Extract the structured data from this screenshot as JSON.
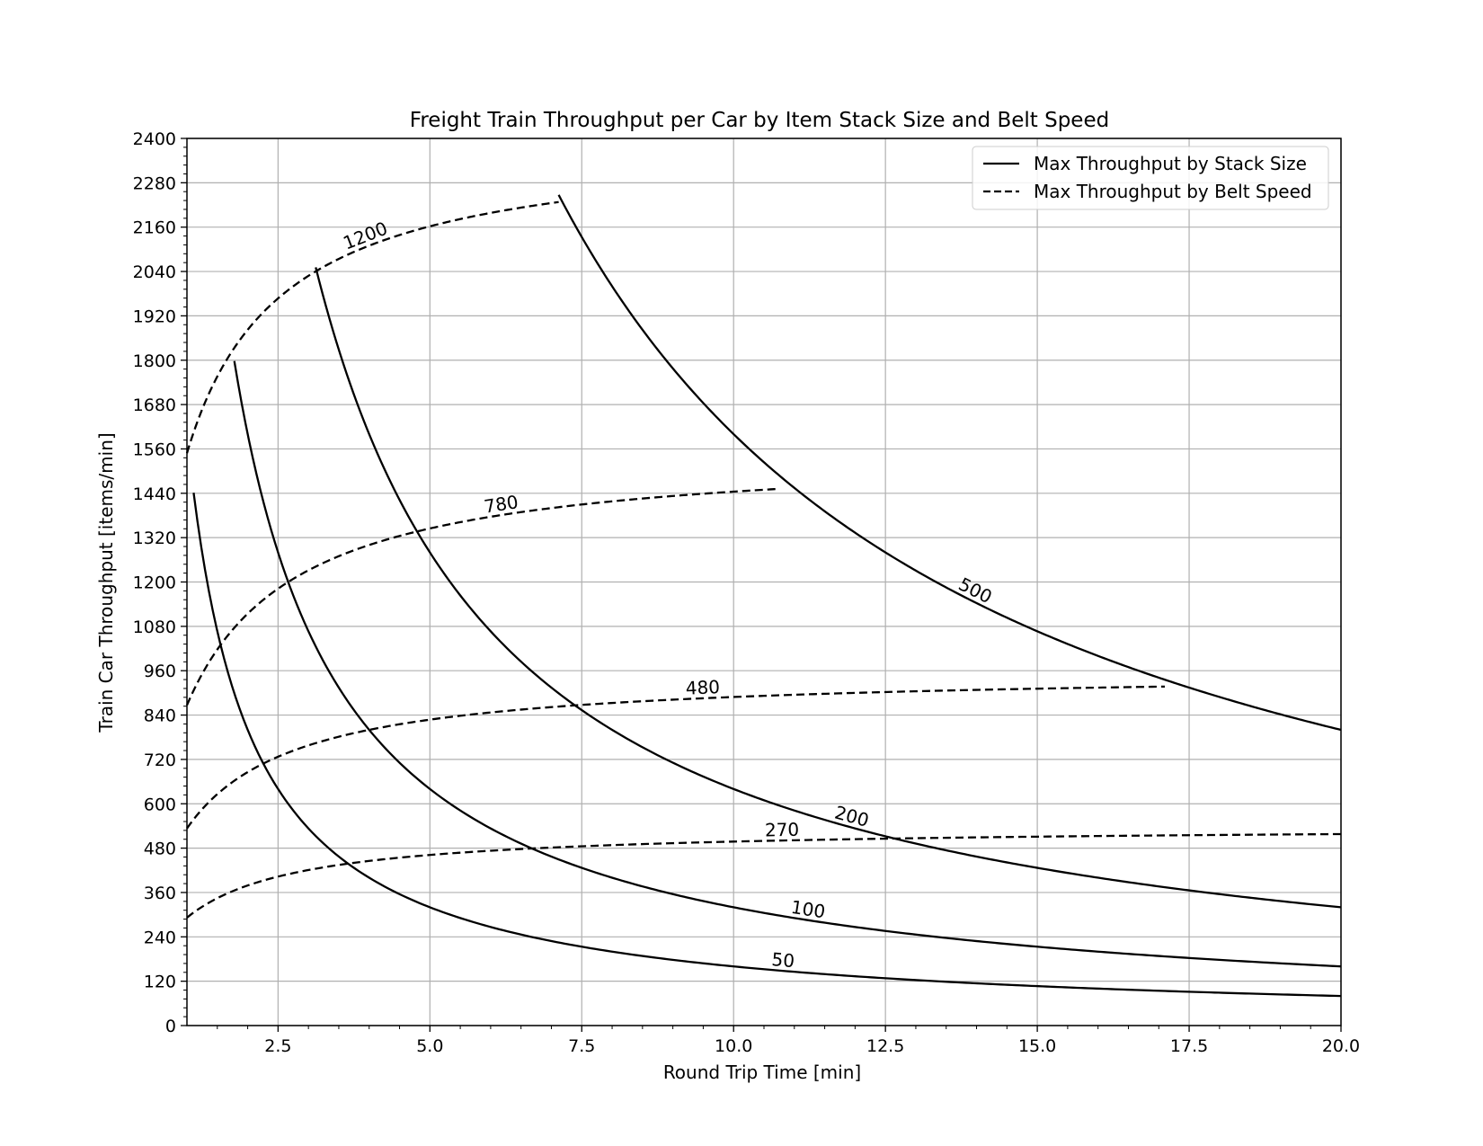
{
  "chart_data": {
    "type": "line",
    "title": "Freight Train Throughput per Car by Item Stack Size and Belt Speed",
    "xlabel": "Round Trip Time [min]",
    "ylabel": "Train Car Throughput [items/min]",
    "xlim": [
      1.0,
      20.0
    ],
    "ylim": [
      0,
      2400
    ],
    "xticks": [
      2.5,
      5.0,
      7.5,
      10.0,
      12.5,
      15.0,
      17.5,
      20.0
    ],
    "xtick_labels": [
      "2.5",
      "5.0",
      "7.5",
      "10.0",
      "12.5",
      "15.0",
      "17.5",
      "20.0"
    ],
    "yticks": [
      0,
      120,
      240,
      360,
      480,
      600,
      720,
      840,
      960,
      1080,
      1200,
      1320,
      1440,
      1560,
      1680,
      1800,
      1920,
      2040,
      2160,
      2280,
      2400
    ],
    "ytick_labels": [
      "0",
      "120",
      "240",
      "360",
      "480",
      "600",
      "720",
      "840",
      "960",
      "1080",
      "1200",
      "1320",
      "1440",
      "1560",
      "1680",
      "1800",
      "1920",
      "2040",
      "2160",
      "2280",
      "2400"
    ],
    "grid": true,
    "legend": {
      "position": "top-right",
      "entries": [
        {
          "label": "Max Throughput by Stack Size",
          "style": "solid"
        },
        {
          "label": "Max Throughput by Belt Speed",
          "style": "dashed"
        }
      ]
    },
    "stack_series": [
      {
        "label": "50",
        "k": 1600,
        "x_start": 1.11,
        "x_end": 20.0,
        "label_x": 10.8
      },
      {
        "label": "100",
        "k": 3200,
        "x_start": 1.78,
        "x_end": 20.0,
        "label_x": 11.2
      },
      {
        "label": "200",
        "k": 6400,
        "x_start": 3.12,
        "x_end": 20.0,
        "label_x": 11.9
      },
      {
        "label": "500",
        "k": 16000,
        "x_start": 7.12,
        "x_end": 20.0,
        "label_x": 13.9
      }
    ],
    "belt_series": [
      {
        "label": "270",
        "a": 540,
        "b": 0.85,
        "x_start": 1.0,
        "x_end": 20.0,
        "label_x": 10.8
      },
      {
        "label": "480",
        "a": 960,
        "b": 0.8,
        "x_start": 1.0,
        "x_end": 17.1,
        "label_x": 9.5
      },
      {
        "label": "780",
        "a": 1560,
        "b": 0.8,
        "x_start": 1.0,
        "x_end": 10.7,
        "label_x": 6.2
      },
      {
        "label": "1200",
        "a": 2400,
        "b": 0.55,
        "x_start": 1.0,
        "x_end": 7.12,
        "label_x": 4.0
      }
    ]
  }
}
